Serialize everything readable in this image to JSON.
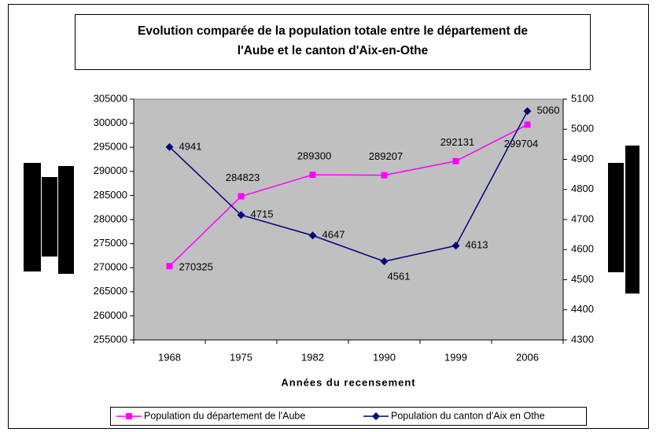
{
  "chart_data": {
    "type": "line",
    "title_lines": [
      "Evolution comparée de la population totale entre le département de",
      "l'Aube et le canton d'Aix-en-Othe"
    ],
    "x_label": "Années du recensement",
    "categories": [
      "1968",
      "1975",
      "1982",
      "1990",
      "1999",
      "2006"
    ],
    "series": [
      {
        "name": "Population du département de l'Aube",
        "color": "#ff00ff",
        "marker": "square",
        "values": [
          270325,
          284823,
          289300,
          289207,
          292131,
          299704
        ]
      },
      {
        "name": "Population du canton d'Aix en Othe",
        "color": "#000080",
        "marker": "diamond",
        "axis": "y2",
        "values": [
          4941,
          4715,
          4647,
          4561,
          4613,
          5060
        ]
      }
    ],
    "ylim": [
      255000,
      305000
    ],
    "yticks": [
      255000,
      260000,
      265000,
      270000,
      275000,
      280000,
      285000,
      290000,
      295000,
      300000,
      305000
    ],
    "y2lim": [
      4300,
      5100
    ],
    "y2ticks": [
      4300,
      4400,
      4500,
      4600,
      4700,
      4800,
      4900,
      5000,
      5100
    ],
    "plot_background": "#c0c0c0",
    "legend": "bottom"
  }
}
